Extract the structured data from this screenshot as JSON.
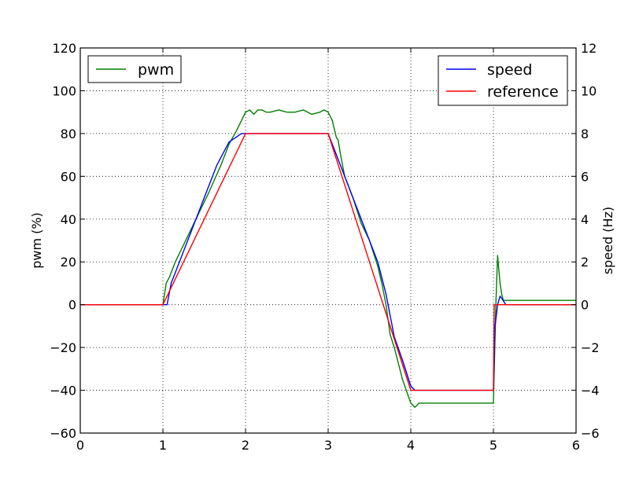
{
  "chart_data": {
    "type": "line",
    "xlim": [
      0,
      6
    ],
    "y_left_lim": [
      -60,
      120
    ],
    "y_right_lim": [
      -6,
      12
    ],
    "x_ticks": [
      0,
      1,
      2,
      3,
      4,
      5,
      6
    ],
    "y_left_ticks": [
      -60,
      -40,
      -20,
      0,
      20,
      40,
      60,
      80,
      100,
      120
    ],
    "y_right_ticks": [
      -6,
      -4,
      -2,
      0,
      2,
      4,
      6,
      8,
      10,
      12
    ],
    "x_tick_labels": [
      "0",
      "1",
      "2",
      "3",
      "4",
      "5",
      "6"
    ],
    "y_left_tick_labels": [
      "−60",
      "−40",
      "−20",
      "0",
      "20",
      "40",
      "60",
      "80",
      "100",
      "120"
    ],
    "y_right_tick_labels": [
      "−6",
      "−4",
      "−2",
      "0",
      "2",
      "4",
      "6",
      "8",
      "10",
      "12"
    ],
    "y_left_label": "pwm (%)",
    "y_right_label": "speed (Hz)",
    "grid": true,
    "grid_style": "dotted",
    "legend_left": {
      "position": "top-left",
      "entries": [
        {
          "name": "pwm",
          "color": "#008000"
        }
      ]
    },
    "legend_right": {
      "position": "top-right",
      "entries": [
        {
          "name": "speed",
          "color": "#0000ff"
        },
        {
          "name": "reference",
          "color": "#ff0000"
        }
      ]
    },
    "series": [
      {
        "name": "pwm",
        "axis": "left",
        "color": "#008000",
        "x": [
          0.0,
          1.0,
          1.04,
          1.08,
          1.15,
          1.25,
          1.4,
          1.55,
          1.7,
          1.8,
          1.9,
          2.0,
          2.05,
          2.1,
          2.15,
          2.2,
          2.25,
          2.3,
          2.4,
          2.5,
          2.6,
          2.7,
          2.8,
          2.9,
          2.95,
          3.0,
          3.05,
          3.1,
          3.12,
          3.15,
          3.2,
          3.3,
          3.4,
          3.5,
          3.6,
          3.65,
          3.7,
          3.75,
          3.8,
          3.9,
          4.0,
          4.05,
          4.1,
          4.3,
          4.5,
          4.7,
          4.9,
          5.0,
          5.03,
          5.05,
          5.08,
          5.1,
          5.12,
          5.15,
          5.5,
          6.0
        ],
        "values": [
          0,
          0,
          10,
          13,
          20,
          28,
          40,
          52,
          65,
          75,
          82,
          90,
          91,
          89,
          91,
          91,
          90,
          90,
          91,
          90,
          90,
          91,
          89,
          90,
          91,
          90,
          86,
          78,
          77,
          70,
          60,
          50,
          38,
          30,
          18,
          10,
          0,
          -14,
          -20,
          -35,
          -46,
          -48,
          -46,
          -46,
          -46,
          -46,
          -46,
          -46,
          0,
          23,
          10,
          5,
          2,
          2,
          2,
          2
        ]
      },
      {
        "name": "speed",
        "axis": "right",
        "color": "#0000ff",
        "x": [
          0.0,
          1.0,
          1.05,
          1.1,
          1.2,
          1.35,
          1.5,
          1.65,
          1.8,
          1.95,
          2.0,
          2.1,
          2.2,
          2.3,
          2.4,
          2.5,
          2.6,
          2.7,
          2.8,
          2.9,
          3.0,
          3.05,
          3.1,
          3.2,
          3.3,
          3.4,
          3.5,
          3.6,
          3.7,
          3.8,
          3.9,
          4.0,
          4.05,
          4.2,
          4.4,
          4.6,
          4.8,
          4.9,
          5.0,
          5.02,
          5.05,
          5.08,
          5.1,
          5.15,
          5.5,
          6.0
        ],
        "values": [
          0,
          0,
          0,
          1,
          2,
          3.5,
          5,
          6.5,
          7.6,
          8,
          8,
          8,
          8,
          8,
          8,
          8,
          8,
          8,
          8,
          8,
          8,
          7.5,
          7,
          6,
          5,
          4,
          3,
          2,
          0.5,
          -1.5,
          -2.6,
          -3.8,
          -4,
          -4,
          -4,
          -4,
          -4,
          -4,
          -4,
          -1,
          0,
          0.4,
          0.3,
          0,
          0,
          0
        ]
      },
      {
        "name": "reference",
        "axis": "right",
        "color": "#ff0000",
        "x": [
          0.0,
          1.0,
          2.0,
          3.0,
          4.0,
          5.0,
          5.01,
          6.0
        ],
        "values": [
          0,
          0,
          8,
          8,
          -4,
          -4,
          0,
          0
        ]
      }
    ]
  }
}
